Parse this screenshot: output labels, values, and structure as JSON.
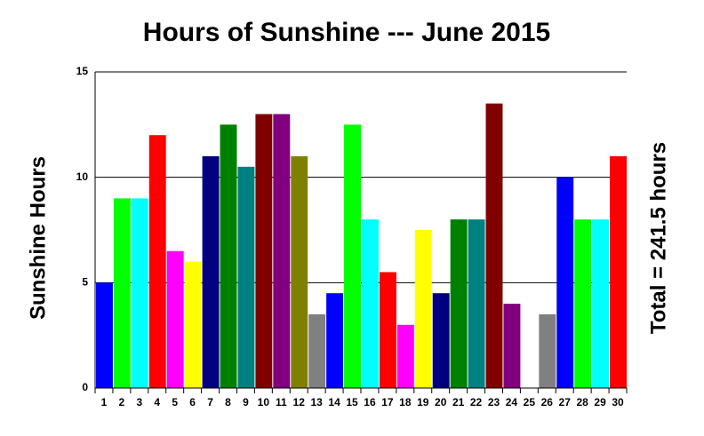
{
  "chart_data": {
    "type": "bar",
    "title": "Hours of Sunshine --- June 2015",
    "y_label": "Sunshine Hours",
    "annotation": "Total = 241.5 hours",
    "categories": [
      "1",
      "2",
      "3",
      "4",
      "5",
      "6",
      "7",
      "8",
      "9",
      "10",
      "11",
      "12",
      "13",
      "14",
      "15",
      "16",
      "17",
      "18",
      "19",
      "20",
      "21",
      "22",
      "23",
      "24",
      "25",
      "26",
      "27",
      "28",
      "29",
      "30"
    ],
    "values": [
      5,
      9,
      9,
      12,
      6.5,
      6,
      11,
      12.5,
      10.5,
      13,
      13,
      11,
      3.5,
      4.5,
      12.5,
      8,
      5.5,
      3,
      7.5,
      4.5,
      8,
      8,
      13.5,
      4,
      0,
      3.5,
      10,
      8,
      8,
      11
    ],
    "colors": [
      "#0000ff",
      "#00ff00",
      "#00ffff",
      "#ff0000",
      "#ff00ff",
      "#ffff00",
      "#000080",
      "#008000",
      "#008080",
      "#800000",
      "#800080",
      "#808000",
      "#808080",
      "#0000ff",
      "#00ff00",
      "#00ffff",
      "#ff0000",
      "#ff00ff",
      "#ffff00",
      "#000080",
      "#008000",
      "#008080",
      "#800000",
      "#800080",
      "#808000",
      "#808080",
      "#0000ff",
      "#00ff00",
      "#00ffff",
      "#ff0000"
    ],
    "ylim": [
      0,
      15
    ],
    "yticks": [
      0,
      5,
      10,
      15
    ],
    "grid": true
  }
}
